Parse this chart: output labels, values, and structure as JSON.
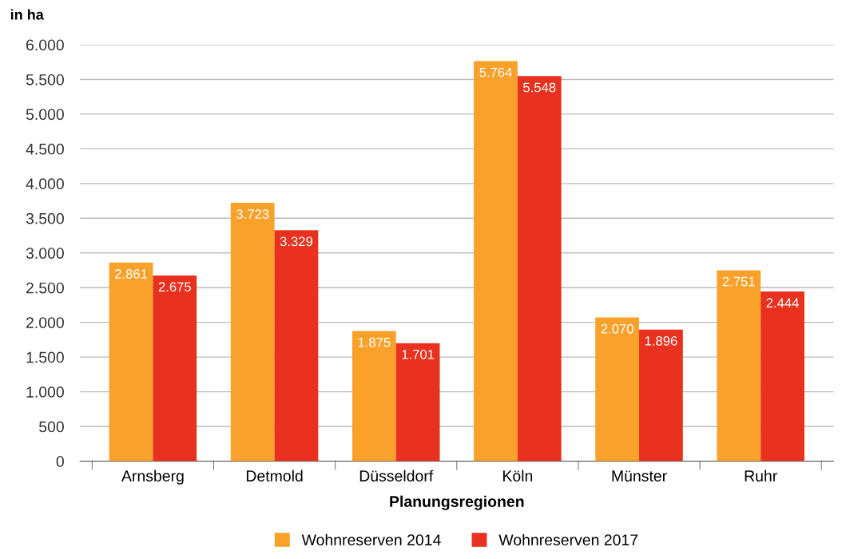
{
  "chart_data": {
    "type": "bar",
    "ylabel": "in ha",
    "xlabel": "Planungsregionen",
    "categories": [
      "Arnsberg",
      "Detmold",
      "Düsseldorf",
      "Köln",
      "Münster",
      "Ruhr"
    ],
    "series": [
      {
        "name": "Wohnreserven 2014",
        "color": "#f9a12b",
        "values": [
          2861,
          3723,
          1875,
          5764,
          2070,
          2751
        ],
        "value_labels": [
          "2.861",
          "3.723",
          "1.875",
          "5.764",
          "2.070",
          "2.751"
        ]
      },
      {
        "name": "Wohnreserven 2017",
        "color": "#e8321f",
        "values": [
          2675,
          3329,
          1701,
          5548,
          1896,
          2444
        ],
        "value_labels": [
          "2.675",
          "3.329",
          "1.701",
          "5.548",
          "1.896",
          "2.444"
        ]
      }
    ],
    "ylim": [
      0,
      6000
    ],
    "yticks": [
      0,
      500,
      {
        "value": 1000,
        "label": "1.000"
      },
      {
        "value": 1500,
        "label": "1.500"
      },
      {
        "value": 2000,
        "label": "2.000"
      },
      {
        "value": 2500,
        "label": "2.500"
      },
      {
        "value": 3000,
        "label": "3.000"
      },
      {
        "value": 3500,
        "label": "3.500"
      },
      {
        "value": 4000,
        "label": "4.000"
      },
      {
        "value": 4500,
        "label": "4.500"
      },
      {
        "value": 5000,
        "label": "5.000"
      },
      {
        "value": 5500,
        "label": "5.500"
      },
      {
        "value": 6000,
        "label": "6.000"
      }
    ],
    "grid": "y",
    "legend": "bottom"
  }
}
